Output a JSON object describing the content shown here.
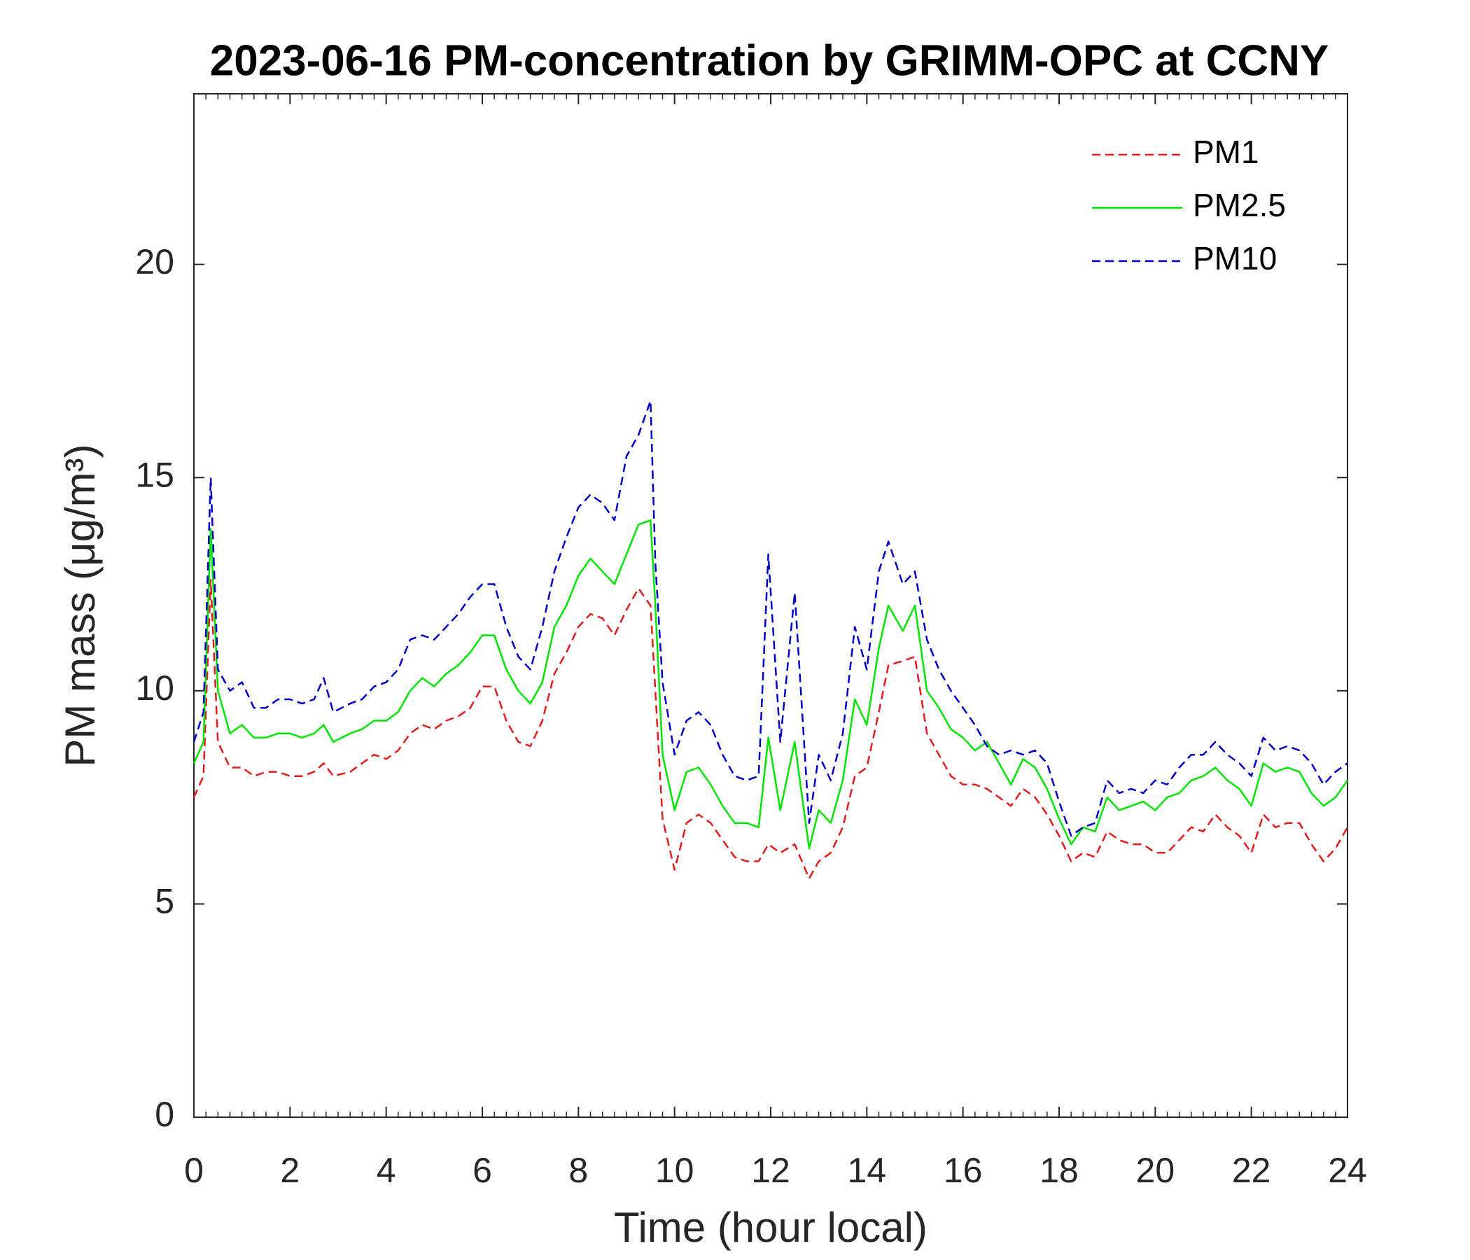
{
  "chart_data": {
    "type": "line",
    "title": "2023-06-16 PM-concentration by GRIMM-OPC at CCNY",
    "xlabel": "Time (hour local)",
    "ylabel": "PM mass (μg/m³)",
    "x": [
      0,
      0.2,
      0.35,
      0.5,
      0.75,
      1,
      1.25,
      1.5,
      1.75,
      2,
      2.25,
      2.5,
      2.7,
      2.9,
      3.25,
      3.5,
      3.75,
      4,
      4.25,
      4.5,
      4.75,
      5,
      5.25,
      5.5,
      5.75,
      6,
      6.25,
      6.5,
      6.75,
      7,
      7.25,
      7.5,
      7.75,
      8,
      8.25,
      8.5,
      8.75,
      9,
      9.25,
      9.5,
      9.6,
      9.75,
      10,
      10.25,
      10.5,
      10.75,
      11,
      11.25,
      11.5,
      11.75,
      11.95,
      12.2,
      12.5,
      12.8,
      13,
      13.25,
      13.5,
      13.75,
      14,
      14.25,
      14.45,
      14.75,
      15,
      15.25,
      15.5,
      15.75,
      16,
      16.25,
      16.5,
      16.75,
      17,
      17.25,
      17.5,
      17.75,
      18,
      18.25,
      18.5,
      18.75,
      19,
      19.25,
      19.5,
      19.75,
      20,
      20.25,
      20.5,
      20.75,
      21,
      21.25,
      21.5,
      21.75,
      22,
      22.25,
      22.5,
      22.75,
      23,
      23.25,
      23.5,
      23.75,
      24
    ],
    "series": [
      {
        "name": "PM1",
        "color": "#e41a1c",
        "linestyle": "dashed",
        "values": [
          7.5,
          8.0,
          12.6,
          8.8,
          8.2,
          8.2,
          8.0,
          8.1,
          8.1,
          8.0,
          8.0,
          8.1,
          8.3,
          8.0,
          8.1,
          8.3,
          8.5,
          8.4,
          8.6,
          9.0,
          9.2,
          9.1,
          9.3,
          9.4,
          9.6,
          10.1,
          10.1,
          9.3,
          8.8,
          8.7,
          9.3,
          10.4,
          10.9,
          11.5,
          11.8,
          11.7,
          11.3,
          11.9,
          12.4,
          12.0,
          10.0,
          7.0,
          5.8,
          6.9,
          7.1,
          6.9,
          6.5,
          6.1,
          6.0,
          6.0,
          6.4,
          6.2,
          6.4,
          5.6,
          6.0,
          6.2,
          6.8,
          8.0,
          8.2,
          9.5,
          10.6,
          10.7,
          10.8,
          9.0,
          8.5,
          8.0,
          7.8,
          7.8,
          7.7,
          7.5,
          7.3,
          7.7,
          7.5,
          7.1,
          6.6,
          6.0,
          6.2,
          6.1,
          6.7,
          6.5,
          6.4,
          6.4,
          6.2,
          6.2,
          6.5,
          6.8,
          6.7,
          7.1,
          6.8,
          6.6,
          6.2,
          7.1,
          6.8,
          6.9,
          6.9,
          6.4,
          6.0,
          6.3,
          6.8
        ]
      },
      {
        "name": "PM2.5",
        "color": "#00e600",
        "linestyle": "solid",
        "values": [
          8.3,
          8.8,
          13.8,
          10.0,
          9.0,
          9.2,
          8.9,
          8.9,
          9.0,
          9.0,
          8.9,
          9.0,
          9.2,
          8.8,
          9.0,
          9.1,
          9.3,
          9.3,
          9.5,
          10.0,
          10.3,
          10.1,
          10.4,
          10.6,
          10.9,
          11.3,
          11.3,
          10.5,
          10.0,
          9.7,
          10.2,
          11.5,
          12.0,
          12.7,
          13.1,
          12.8,
          12.5,
          13.2,
          13.9,
          14.0,
          12.0,
          8.5,
          7.2,
          8.1,
          8.2,
          7.8,
          7.3,
          6.9,
          6.9,
          6.8,
          8.9,
          7.2,
          8.8,
          6.3,
          7.2,
          6.9,
          7.9,
          9.8,
          9.2,
          11.0,
          12.0,
          11.4,
          12.0,
          10.0,
          9.6,
          9.1,
          8.9,
          8.6,
          8.8,
          8.3,
          7.8,
          8.4,
          8.2,
          7.7,
          7.0,
          6.4,
          6.8,
          6.7,
          7.5,
          7.2,
          7.3,
          7.4,
          7.2,
          7.5,
          7.6,
          7.9,
          8.0,
          8.2,
          7.9,
          7.7,
          7.3,
          8.3,
          8.1,
          8.2,
          8.1,
          7.6,
          7.3,
          7.5,
          7.9
        ]
      },
      {
        "name": "PM10",
        "color": "#0000cc",
        "linestyle": "dashed",
        "values": [
          8.8,
          9.5,
          15.0,
          10.5,
          10.0,
          10.2,
          9.6,
          9.6,
          9.8,
          9.8,
          9.7,
          9.8,
          10.3,
          9.5,
          9.7,
          9.8,
          10.1,
          10.2,
          10.5,
          11.2,
          11.3,
          11.2,
          11.5,
          11.8,
          12.2,
          12.5,
          12.5,
          11.5,
          10.8,
          10.5,
          11.5,
          12.8,
          13.6,
          14.3,
          14.6,
          14.4,
          14.0,
          15.5,
          16.0,
          16.8,
          13.0,
          10.2,
          8.5,
          9.3,
          9.5,
          9.2,
          8.5,
          8.0,
          7.9,
          8.0,
          13.2,
          8.8,
          12.3,
          6.9,
          8.5,
          7.9,
          9.0,
          11.5,
          10.5,
          12.8,
          13.5,
          12.5,
          12.8,
          11.2,
          10.5,
          10.0,
          9.6,
          9.2,
          8.7,
          8.5,
          8.6,
          8.5,
          8.6,
          8.3,
          7.4,
          6.6,
          6.8,
          6.9,
          7.9,
          7.6,
          7.7,
          7.6,
          7.9,
          7.8,
          8.2,
          8.5,
          8.5,
          8.8,
          8.5,
          8.3,
          8.0,
          8.9,
          8.6,
          8.7,
          8.6,
          8.3,
          7.8,
          8.1,
          8.3
        ]
      }
    ],
    "xlim": [
      0,
      24
    ],
    "xticks": [
      0,
      2,
      4,
      6,
      8,
      10,
      12,
      14,
      16,
      18,
      20,
      22,
      24
    ],
    "ylim": [
      0,
      24
    ],
    "yticks": [
      0,
      5,
      10,
      15,
      20
    ],
    "grid": false,
    "legend": "upper right"
  }
}
